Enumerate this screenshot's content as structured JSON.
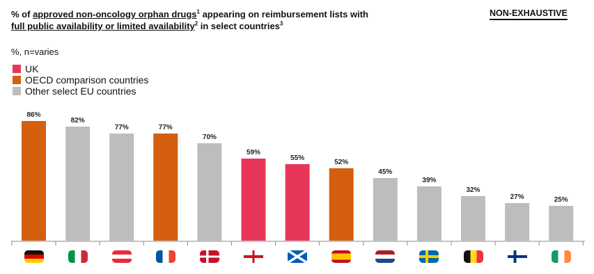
{
  "header": {
    "title_p1": "% of ",
    "title_u1": "approved non-oncology orphan drugs",
    "title_s1": "1",
    "title_p2": " appearing on reimbursement lists with",
    "title_u2": "full public availability or limited availability",
    "title_s2": "2",
    "title_p3": " in select countries",
    "title_s3": "3",
    "badge": "NON-EXHAUSTIVE",
    "subtitle": "%, n=varies"
  },
  "legend": [
    {
      "label": "UK",
      "color": "#e8365b"
    },
    {
      "label": "OECD comparison countries",
      "color": "#d35f0f"
    },
    {
      "label": "Other select EU countries",
      "color": "#bdbdbd"
    }
  ],
  "chart_data": {
    "type": "bar",
    "categories": [
      "Germany",
      "Italy",
      "Austria",
      "France",
      "Denmark",
      "England",
      "Scotland",
      "Spain",
      "Netherlands",
      "Sweden",
      "Belgium",
      "Finland",
      "Ireland"
    ],
    "values": [
      86,
      82,
      77,
      77,
      70,
      59,
      55,
      52,
      45,
      39,
      32,
      27,
      25
    ],
    "value_labels": [
      "86%",
      "82%",
      "77%",
      "77%",
      "70%",
      "59%",
      "55%",
      "52%",
      "45%",
      "39%",
      "32%",
      "27%",
      "25%"
    ],
    "groups": [
      "OECD comparison countries",
      "Other select EU countries",
      "Other select EU countries",
      "OECD comparison countries",
      "Other select EU countries",
      "UK",
      "UK",
      "OECD comparison countries",
      "Other select EU countries",
      "Other select EU countries",
      "Other select EU countries",
      "Other select EU countries",
      "Other select EU countries"
    ],
    "colors": {
      "UK": "#e8365b",
      "OECD comparison countries": "#d35f0f",
      "Other select EU countries": "#bdbdbd"
    },
    "ylim": [
      0,
      100
    ],
    "grid": false,
    "legend_position": "top-left",
    "axis_labels": "country-flag-icons"
  }
}
